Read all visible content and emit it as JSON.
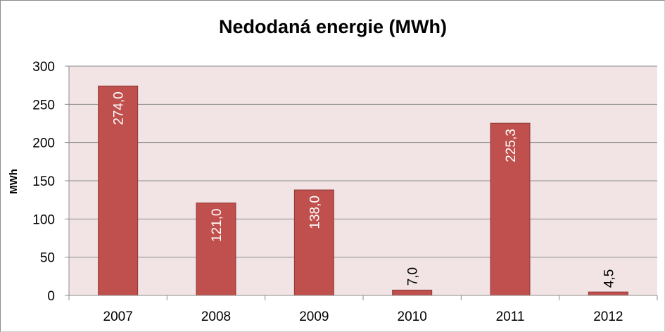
{
  "chart_data": {
    "type": "bar",
    "title": "Nedodaná energie (MWh)",
    "xlabel": "",
    "ylabel": "MWh",
    "categories": [
      "2007",
      "2008",
      "2009",
      "2010",
      "2011",
      "2012"
    ],
    "values": [
      274.0,
      121.0,
      138.0,
      7.0,
      225.3,
      4.5
    ],
    "data_labels": [
      "274,0",
      "121,0",
      "138,0",
      "7,0",
      "225,3",
      "4,5"
    ],
    "ylim": [
      0,
      300
    ],
    "yticks": [
      0,
      50,
      100,
      150,
      200,
      250,
      300
    ],
    "grid": true,
    "legend": "none",
    "colors": {
      "bar": "#c0504d",
      "bar_edge": "#8c3836",
      "plot_bg": "#f2e4e4",
      "grid": "#8c8c8c",
      "label_inside": "#ffffff",
      "label_outside": "#000000"
    }
  }
}
